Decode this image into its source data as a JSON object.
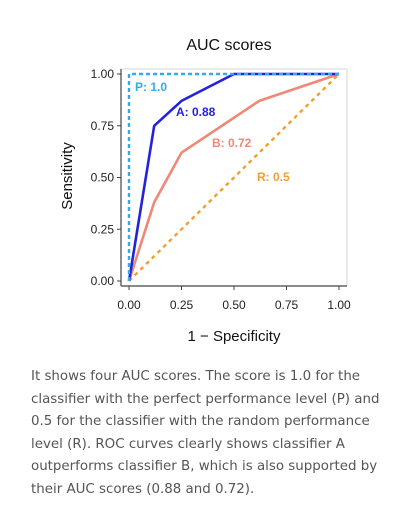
{
  "chart_data": {
    "type": "line",
    "title": "AUC scores",
    "xlabel": "1 − Specificity",
    "ylabel": "Sensitivity",
    "xlim": [
      0,
      1
    ],
    "ylim": [
      0,
      1
    ],
    "xticks": [
      "0.00",
      "0.25",
      "0.50",
      "0.75",
      "1.00"
    ],
    "yticks": [
      "0.00",
      "0.25",
      "0.50",
      "0.75",
      "1.00"
    ],
    "grid": false,
    "legend": "none",
    "series": [
      {
        "name": "P",
        "auc_label": "P: 1.0",
        "color": "#33aaee",
        "style": "dashed",
        "x": [
          0,
          0,
          1
        ],
        "y": [
          0,
          1,
          1
        ]
      },
      {
        "name": "A",
        "auc_label": "A: 0.88",
        "color": "#2222dd",
        "style": "solid",
        "x": [
          0,
          0.12,
          0.25,
          0.5,
          1
        ],
        "y": [
          0,
          0.75,
          0.87,
          1,
          1
        ]
      },
      {
        "name": "B",
        "auc_label": "B: 0.72",
        "color": "#ee8877",
        "style": "solid",
        "x": [
          0,
          0.12,
          0.25,
          0.62,
          1
        ],
        "y": [
          0,
          0.38,
          0.62,
          0.87,
          1
        ]
      },
      {
        "name": "R",
        "auc_label": "R: 0.5",
        "color": "#f0a030",
        "style": "dashed",
        "x": [
          0,
          1
        ],
        "y": [
          0,
          1
        ]
      }
    ]
  },
  "caption": "It shows four AUC scores. The score is 1.0 for the classifier with the perfect performance level (P) and 0.5 for the classifier with the random performance level (R). ROC curves clearly shows classifier A outperforms classifier B, which is also supported by their AUC scores (0.88 and 0.72)."
}
